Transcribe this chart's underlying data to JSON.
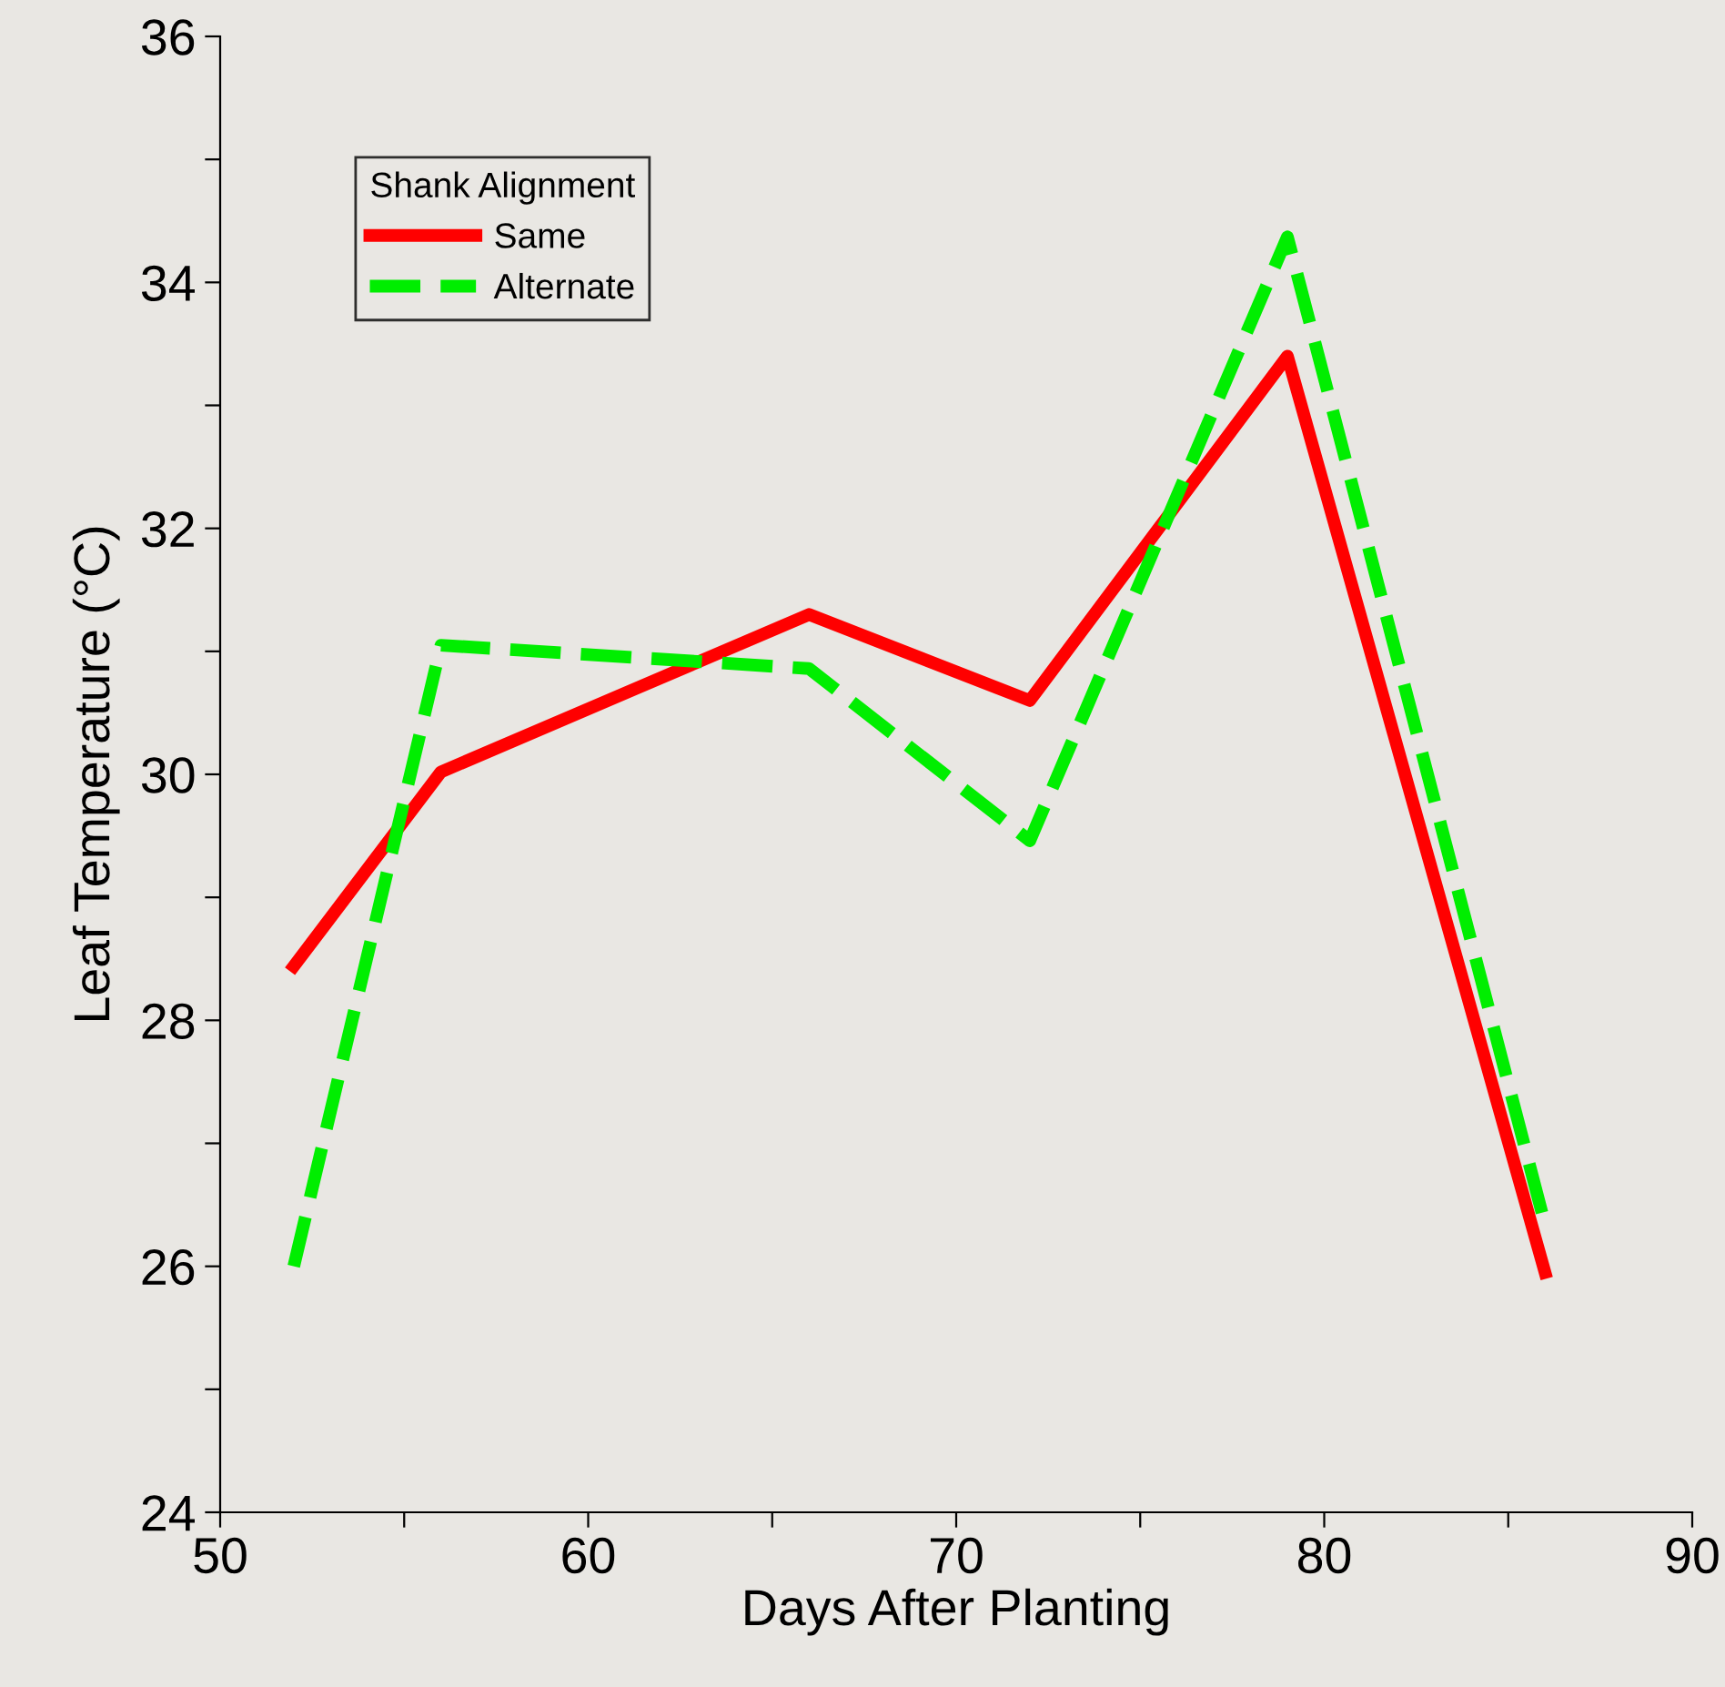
{
  "chart_data": {
    "type": "line",
    "xlabel": "Days After Planting",
    "ylabel": "Leaf Temperature (°C)",
    "legend_title": "Shank Alignment",
    "x": [
      52,
      56,
      66,
      72,
      79,
      86
    ],
    "series": [
      {
        "name": "Same",
        "color": "#ff0000",
        "line_style": "solid",
        "values": [
          28.44,
          30.02,
          31.3,
          30.6,
          33.4,
          25.95
        ]
      },
      {
        "name": "Alternate",
        "color": "#00ee00",
        "line_style": "dashed",
        "values": [
          26.0,
          31.05,
          30.86,
          29.46,
          34.37,
          26.34
        ]
      }
    ],
    "xlim": [
      50,
      90
    ],
    "xticks": [
      50,
      {
        "value": 55,
        "label": null
      },
      60,
      {
        "value": 65,
        "label": null
      },
      70,
      {
        "value": 75,
        "label": null
      },
      80,
      {
        "value": 85,
        "label": null
      },
      90
    ],
    "ylim": [
      24,
      36
    ],
    "yticks": [
      24,
      {
        "value": 25,
        "label": null
      },
      26,
      {
        "value": 27,
        "label": null
      },
      28,
      {
        "value": 29,
        "label": null
      },
      30,
      {
        "value": 31,
        "label": null
      },
      32,
      {
        "value": 33,
        "label": null
      },
      34,
      {
        "value": 35,
        "label": null
      },
      36
    ],
    "grid": false,
    "legend": "top left",
    "marker": "none"
  }
}
